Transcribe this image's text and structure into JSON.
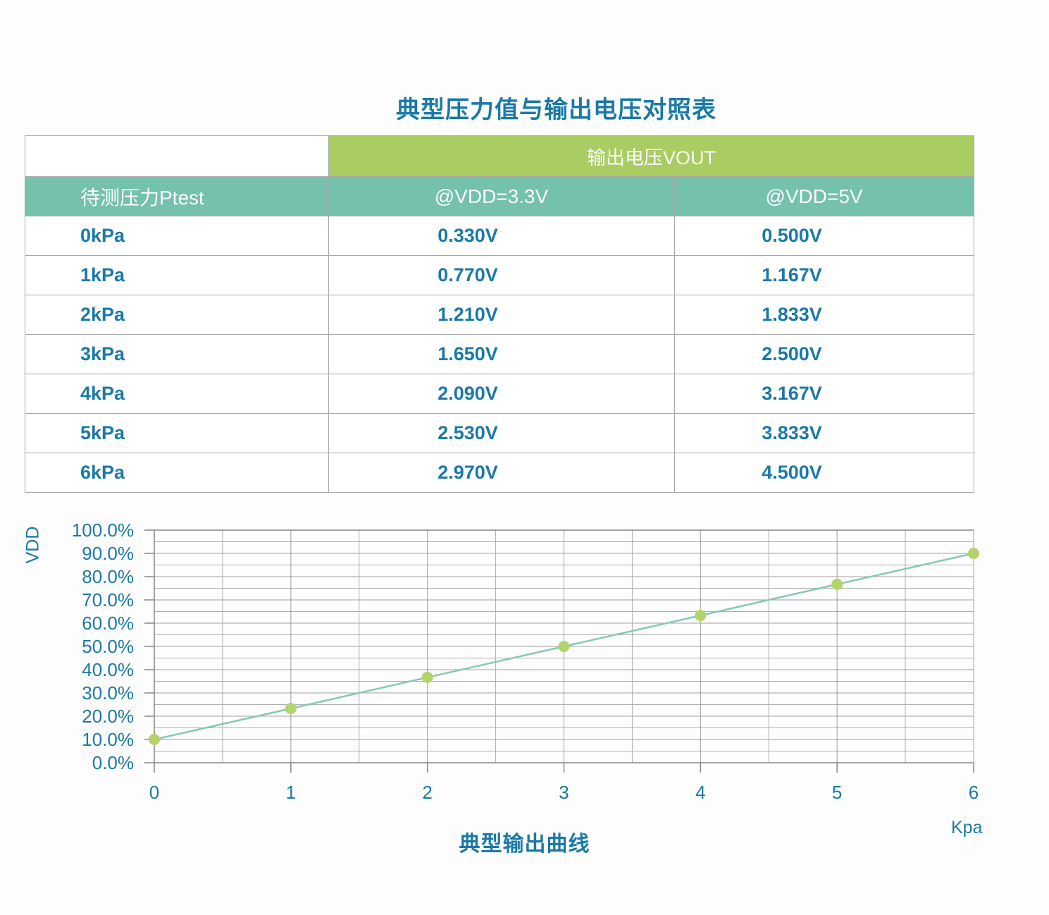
{
  "page": {
    "title": "典型压力值与输出电压对照表"
  },
  "table": {
    "merged_header": "输出电压VOUT",
    "columns": [
      "待测压力Ptest",
      "@VDD=3.3V",
      "@VDD=5V"
    ],
    "rows": [
      {
        "pressure": "0kPa",
        "vout_3v3": "0.330V",
        "vout_5v": "0.500V"
      },
      {
        "pressure": "1kPa",
        "vout_3v3": "0.770V",
        "vout_5v": "1.167V"
      },
      {
        "pressure": "2kPa",
        "vout_3v3": "1.210V",
        "vout_5v": "1.833V"
      },
      {
        "pressure": "3kPa",
        "vout_3v3": "1.650V",
        "vout_5v": "2.500V"
      },
      {
        "pressure": "4kPa",
        "vout_3v3": "2.090V",
        "vout_5v": "3.167V"
      },
      {
        "pressure": "5kPa",
        "vout_3v3": "2.530V",
        "vout_5v": "3.833V"
      },
      {
        "pressure": "6kPa",
        "vout_3v3": "2.970V",
        "vout_5v": "4.500V"
      }
    ],
    "colors": {
      "header_green": "#a9cc63",
      "header_teal": "#74c1ac",
      "text_blue": "#1a79a7",
      "border_gray": "#a8a8a8"
    }
  },
  "chart_data": {
    "type": "line",
    "title": "典型输出曲线",
    "xlabel": "Kpa",
    "ylabel": "VDD",
    "x": [
      0,
      1,
      2,
      3,
      4,
      5,
      6
    ],
    "values": [
      10.0,
      23.3,
      36.7,
      50.0,
      63.3,
      76.7,
      90.0
    ],
    "x_tick_labels": [
      "0",
      "1",
      "2",
      "3",
      "4",
      "5",
      "6"
    ],
    "y_tick_labels": [
      "0.0%",
      "10.0%",
      "20.0%",
      "30.0%",
      "40.0%",
      "50.0%",
      "60.0%",
      "70.0%",
      "80.0%",
      "90.0%",
      "100.0%"
    ],
    "ylim": [
      0,
      100
    ],
    "xlim": [
      0,
      6
    ],
    "y_major_step": 10,
    "y_minor_step": 5,
    "x_major_step": 1,
    "x_minor_step": 0.5,
    "grid": true,
    "legend": "none",
    "line_color": "#86c9b4",
    "marker_color": "#b2d469",
    "grid_major_color": "#9e9e9e",
    "grid_minor_color": "#aeaeae",
    "axis_color": "#878787",
    "label_color": "#1a79a7"
  }
}
